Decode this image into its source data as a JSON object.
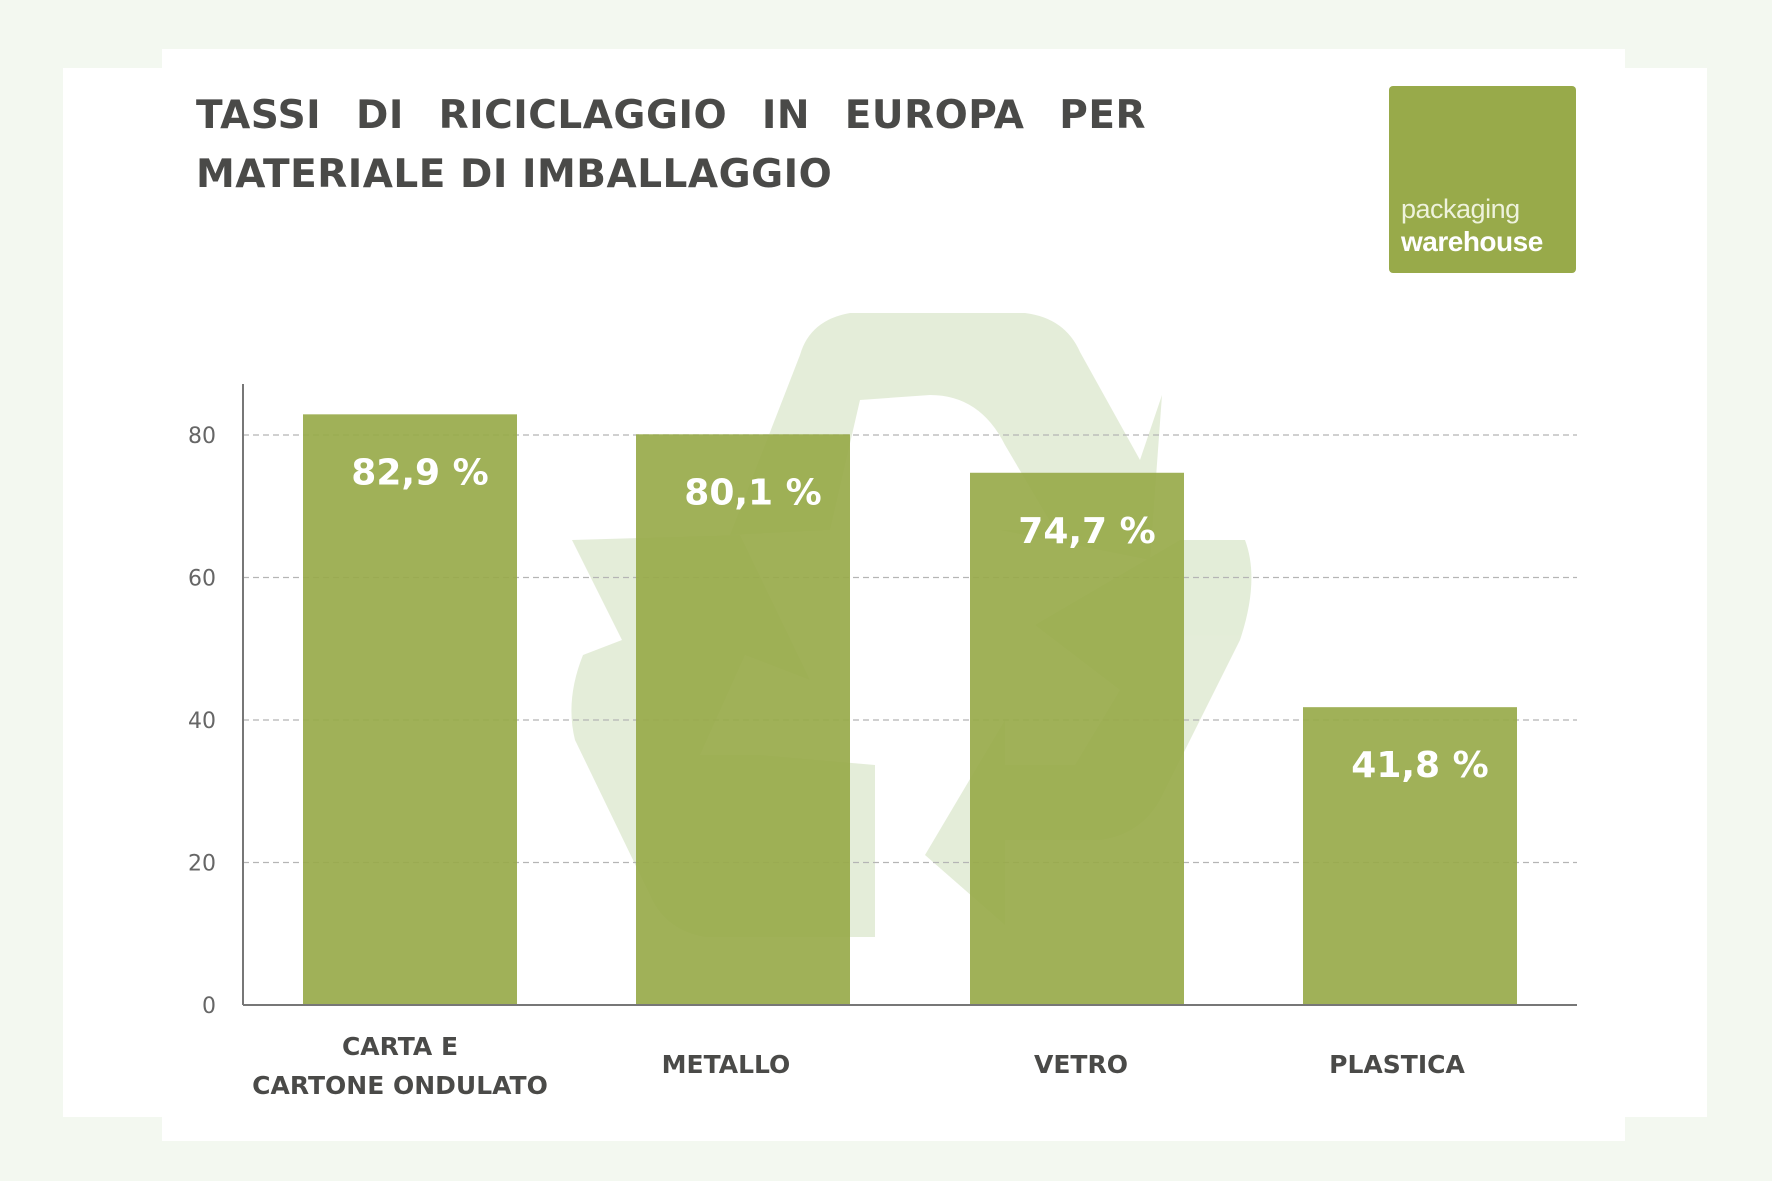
{
  "chart_data": {
    "type": "bar",
    "title": "TASSI DI RICICLAGGIO IN EUROPA PER MATERIALE DI IMBALLAGGIO",
    "categories": [
      [
        "CARTA E",
        "CARTONE ONDULATO"
      ],
      [
        "METALLO"
      ],
      [
        "VETRO"
      ],
      [
        "PLASTICA"
      ]
    ],
    "values": [
      82.9,
      80.1,
      74.7,
      41.8
    ],
    "data_labels": [
      "82,9 %",
      "80,1 %",
      "74,7 %",
      "41,8 %"
    ],
    "yticks": [
      0,
      20,
      40,
      60,
      80
    ],
    "ylim": [
      0,
      88
    ],
    "grid": true,
    "xlabel": "",
    "ylabel": "",
    "colors": {
      "bar": "#98aa4a",
      "grid": "#b5b5b5",
      "axis": "#777777",
      "text": "#4a4a48",
      "background": "#f3f8f0",
      "watermark": "#cddfb9"
    }
  },
  "logo": {
    "line1": "packaging",
    "line2": "warehouse"
  }
}
